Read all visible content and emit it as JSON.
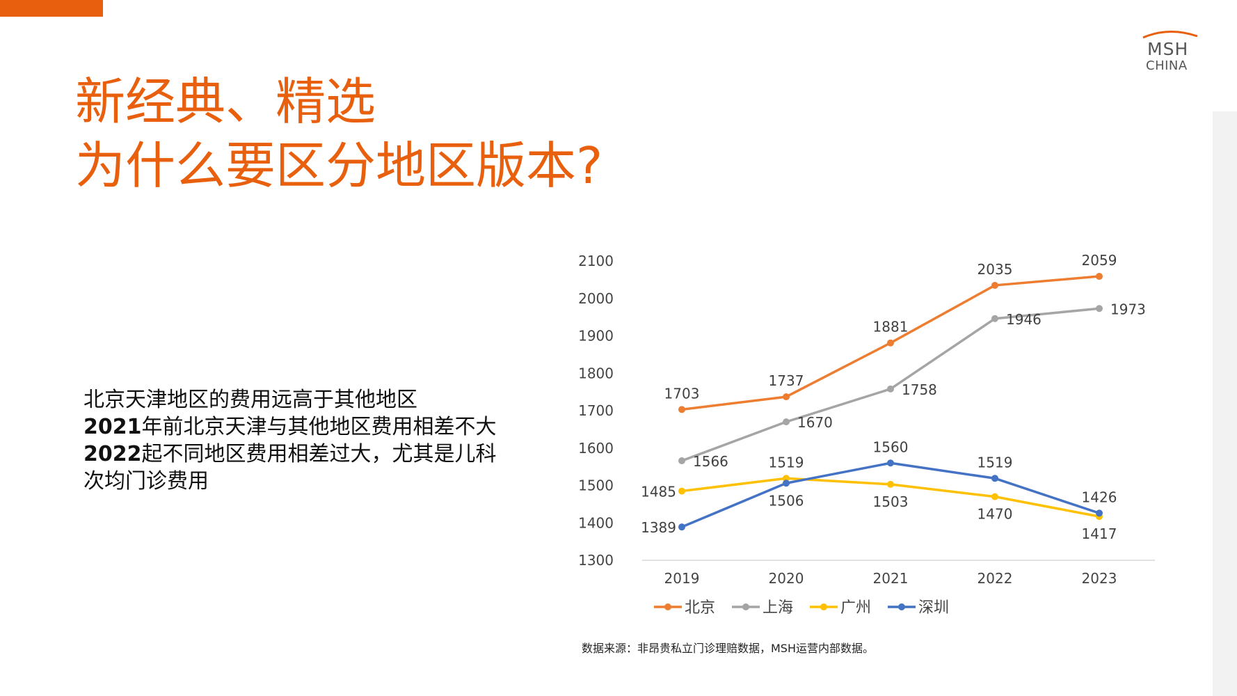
{
  "title": {
    "line1": "新经典、精选",
    "line2": "为什么要区分地区版本?"
  },
  "logo": {
    "line1": "MSH",
    "line2": "CHINA"
  },
  "body": {
    "line1": "北京天津地区的费用远高于其他地区",
    "line2_num": "2021",
    "line2_text": "年前北京天津与其他地区费用相差不大",
    "line3_num": "2022",
    "line3_text": "起不同地区费用相差过大，尤其是儿科",
    "line4": "次均门诊费用"
  },
  "source_note": "数据来源：非昂贵私立门诊理赔数据，MSH运营内部数据。",
  "chart_data": {
    "type": "line",
    "categories": [
      "2019",
      "2020",
      "2021",
      "2022",
      "2023"
    ],
    "ylim": [
      1300,
      2100
    ],
    "yticks": [
      1300,
      1400,
      1500,
      1600,
      1700,
      1800,
      1900,
      2000,
      2100
    ],
    "series": [
      {
        "name": "北京",
        "color": "#ed7d31",
        "values": [
          1703,
          1737,
          1881,
          2035,
          2059
        ]
      },
      {
        "name": "上海",
        "color": "#a5a5a5",
        "values": [
          1566,
          1670,
          1758,
          1946,
          1973
        ]
      },
      {
        "name": "广州",
        "color": "#ffc000",
        "values": [
          1485,
          1519,
          1503,
          1470,
          1417
        ]
      },
      {
        "name": "深圳",
        "color": "#4472c4",
        "values": [
          1389,
          1506,
          1560,
          1519,
          1426
        ]
      }
    ]
  }
}
